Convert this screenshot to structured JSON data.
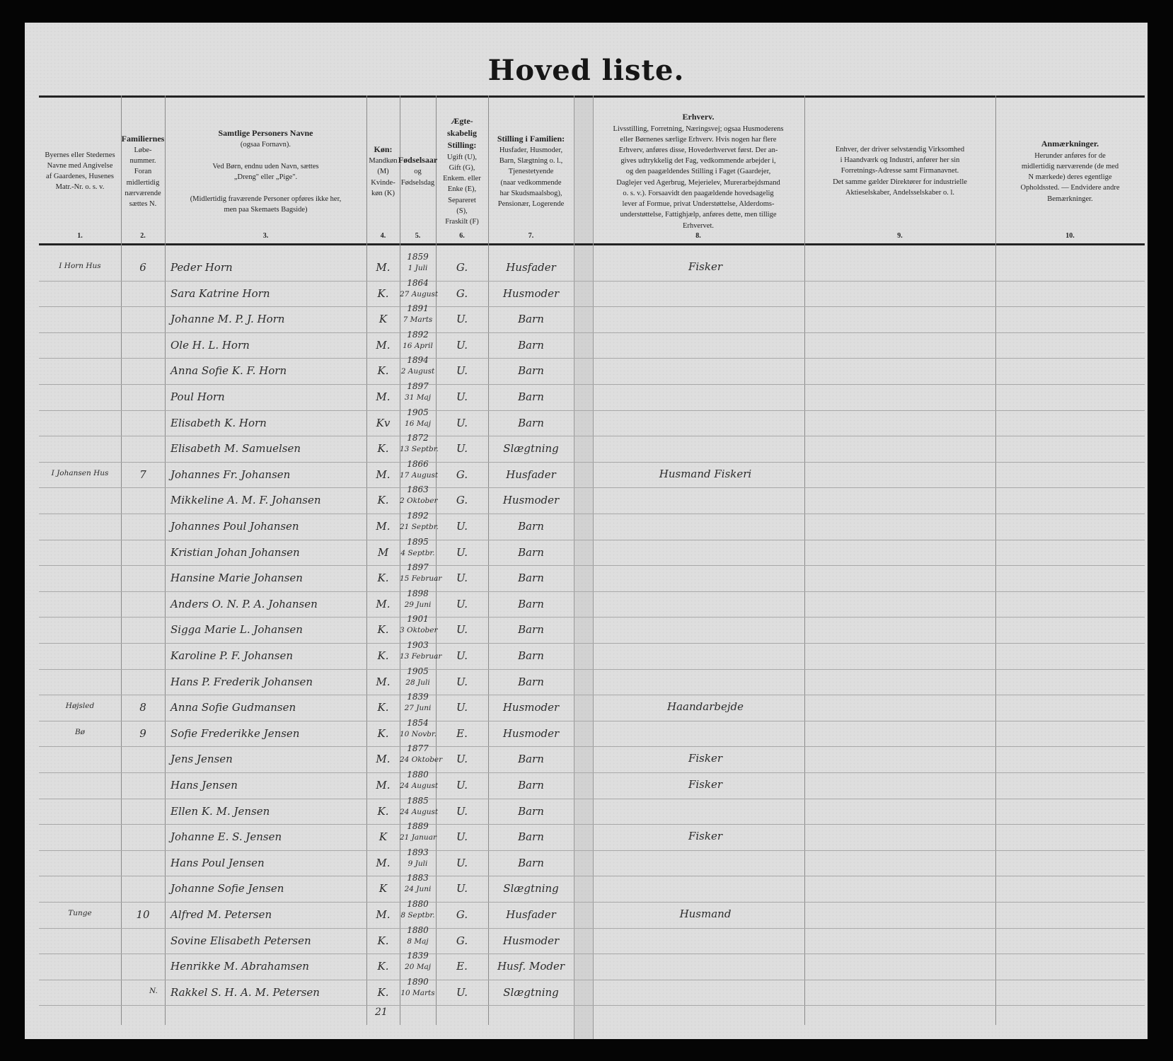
{
  "title": "Hoved liste.",
  "columns": [
    {
      "num": "1.",
      "header": "Byernes eller Stedernes\nNavne med Angivelse\naf Gaardenes, Husenes\nMatr.-Nr. o. s. v."
    },
    {
      "num": "2.",
      "header_title": "Familiernes",
      "header": "Løbe-\nnummer.\nForan\nmidlertidig\nnærværende\nsættes N."
    },
    {
      "num": "3.",
      "header_title": "Samtlige Personers Navne",
      "header": "(ogsaa Fornavn).\n\nVed Børn, endnu uden Navn, sættes\n„Dreng\" eller „Pige\".\n\n(Midlertidig fraværende Personer opføres ikke her,\nmen paa Skemaets Bagside)"
    },
    {
      "num": "4.",
      "header_title": "Køn:",
      "header": "Mandkøn\n(M)\nKvinde-\nkøn (K)"
    },
    {
      "num": "5.",
      "header_title": "Fødselsaar",
      "header": "og\nFødselsdag"
    },
    {
      "num": "6.",
      "header_title": "Ægte-\nskabelig\nStilling:",
      "header": "Ugift (U),\nGift (G),\nEnkem. eller\nEnke (E),\nSepareret\n(S),\nFraskilt (F)"
    },
    {
      "num": "7.",
      "header_title": "Stilling i Familien:",
      "header": "Husfader, Husmoder,\nBarn, Slægtning o. l.,\nTjenestetyende\n(naar vedkommende\nhar Skudsmaalsbog),\nPensionær, Logerende"
    },
    {
      "num": "8.",
      "header_title": "Erhverv.",
      "header": "Livsstilling, Forretning, Næringsvej; ogsaa Husmoderens\neller Børnenes særlige Erhverv. Hvis nogen har flere\nErhverv, anføres disse, Hovederhvervet først. Der an-\ngives udtrykkelig det Fag, vedkommende arbejder i,\nog den paagældendes Stilling i Faget (Gaardejer,\nDaglejer ved Agerbrug, Mejerielev, Murerarbejdsmand\no. s. v.). Forsaavidt den paagældende hovedsagelig\nlever af Formue, privat Understøttelse, Alderdoms-\nunderstøttelse, Fattighjælp, anføres dette, men tillige\nErhvervet."
    },
    {
      "num": "9.",
      "header": "Enhver, der driver selvstændig Virksomhed\ni Haandværk og Industri, anfører her sin\nForretnings-Adresse samt Firmanavnet.\nDet samme gælder Direktører for industrielle\nAktieselskaber, Andelsselskaber o. l."
    },
    {
      "num": "10.",
      "header_title": "Anmærkninger.",
      "header": "Herunder anføres for de\nmidlertidig nærværende (de med\nN mærkede) deres egentlige\nOpholdssted. — Endvidere andre\nBemærkninger."
    }
  ],
  "rows": [
    {
      "place": "I Horn Hus",
      "fam": "6",
      "name": "Peder Horn",
      "sex": "M.",
      "year": "1859",
      "day": "1 Juli",
      "civil": "G.",
      "family": "Husfader",
      "occupation": "Fisker"
    },
    {
      "name": "Sara Katrine Horn",
      "sex": "K.",
      "year": "1864",
      "day": "27 August",
      "civil": "G.",
      "family": "Husmoder"
    },
    {
      "name": "Johanne M. P. J. Horn",
      "sex": "K",
      "year": "1891",
      "day": "7 Marts",
      "civil": "U.",
      "family": "Barn"
    },
    {
      "name": "Ole H. L. Horn",
      "sex": "M.",
      "year": "1892",
      "day": "16 April",
      "civil": "U.",
      "family": "Barn"
    },
    {
      "name": "Anna Sofie K. F. Horn",
      "sex": "K.",
      "year": "1894",
      "day": "2 August",
      "civil": "U.",
      "family": "Barn"
    },
    {
      "name": "Poul Horn",
      "sex": "M.",
      "year": "1897",
      "day": "31 Maj",
      "civil": "U.",
      "family": "Barn"
    },
    {
      "name": "Elisabeth K. Horn",
      "sex": "Kv",
      "year": "1905",
      "day": "16 Maj",
      "civil": "U.",
      "family": "Barn"
    },
    {
      "name": "Elisabeth M. Samuelsen",
      "sex": "K.",
      "year": "1872",
      "day": "13 Septbr.",
      "civil": "U.",
      "family": "Slægtning"
    },
    {
      "place": "I Johansen Hus",
      "fam": "7",
      "name": "Johannes Fr. Johansen",
      "sex": "M.",
      "year": "1866",
      "day": "17 August",
      "civil": "G.",
      "family": "Husfader",
      "occupation": "Husmand Fiskeri"
    },
    {
      "name": "Mikkeline A. M. F. Johansen",
      "sex": "K.",
      "year": "1863",
      "day": "2 Oktober",
      "civil": "G.",
      "family": "Husmoder"
    },
    {
      "name": "Johannes Poul Johansen",
      "sex": "M.",
      "year": "1892",
      "day": "21 Septbr.",
      "civil": "U.",
      "family": "Barn"
    },
    {
      "name": "Kristian Johan Johansen",
      "sex": "M",
      "year": "1895",
      "day": "4 Septbr.",
      "civil": "U.",
      "family": "Barn"
    },
    {
      "name": "Hansine Marie Johansen",
      "sex": "K.",
      "year": "1897",
      "day": "15 Februar",
      "civil": "U.",
      "family": "Barn"
    },
    {
      "name": "Anders O. N. P. A. Johansen",
      "sex": "M.",
      "year": "1898",
      "day": "29 Juni",
      "civil": "U.",
      "family": "Barn"
    },
    {
      "name": "Sigga Marie L. Johansen",
      "sex": "K.",
      "year": "1901",
      "day": "3 Oktober",
      "civil": "U.",
      "family": "Barn"
    },
    {
      "name": "Karoline P. F. Johansen",
      "sex": "K.",
      "year": "1903",
      "day": "13 Februar",
      "civil": "U.",
      "family": "Barn"
    },
    {
      "name": "Hans P. Frederik Johansen",
      "sex": "M.",
      "year": "1905",
      "day": "28 Juli",
      "civil": "U.",
      "family": "Barn"
    },
    {
      "place": "Højsled",
      "fam": "8",
      "name": "Anna Sofie Gudmansen",
      "sex": "K.",
      "year": "1839",
      "day": "27 Juni",
      "civil": "U.",
      "family": "Husmoder",
      "occupation": "Haandarbejde"
    },
    {
      "place": "Bø",
      "fam": "9",
      "name": "Sofie Frederikke Jensen",
      "sex": "K.",
      "year": "1854",
      "day": "10 Novbr.",
      "civil": "E.",
      "family": "Husmoder"
    },
    {
      "name": "Jens Jensen",
      "sex": "M.",
      "year": "1877",
      "day": "24 Oktober",
      "civil": "U.",
      "family": "Barn",
      "occupation": "Fisker"
    },
    {
      "name": "Hans Jensen",
      "sex": "M.",
      "year": "1880",
      "day": "24 August",
      "civil": "U.",
      "family": "Barn",
      "occupation": "Fisker"
    },
    {
      "name": "Ellen K. M. Jensen",
      "sex": "K.",
      "year": "1885",
      "day": "24 August",
      "civil": "U.",
      "family": "Barn"
    },
    {
      "name": "Johanne E. S. Jensen",
      "sex": "K",
      "year": "1889",
      "day": "21 Januar",
      "civil": "U.",
      "family": "Barn",
      "occupation": "Fisker"
    },
    {
      "name": "Hans Poul Jensen",
      "sex": "M.",
      "year": "1893",
      "day": "9 Juli",
      "civil": "U.",
      "family": "Barn"
    },
    {
      "name": "Johanne Sofie Jensen",
      "sex": "K",
      "year": "1883",
      "day": "24 Juni",
      "civil": "U.",
      "family": "Slægtning"
    },
    {
      "place": "Tunge",
      "fam": "10",
      "name": "Alfred M. Petersen",
      "sex": "M.",
      "year": "1880",
      "day": "8 Septbr.",
      "civil": "G.",
      "family": "Husfader",
      "occupation": "Husmand"
    },
    {
      "name": "Sovine Elisabeth Petersen",
      "sex": "K.",
      "year": "1880",
      "day": "8 Maj",
      "civil": "G.",
      "family": "Husmoder"
    },
    {
      "name": "Henrikke M. Abrahamsen",
      "sex": "K.",
      "year": "1839",
      "day": "20 Maj",
      "civil": "E.",
      "family": "Husf. Moder"
    },
    {
      "prefix": "N.",
      "name": "Rakkel S. H. A. M. Petersen",
      "sex": "K.",
      "year": "1890",
      "day": "10 Marts",
      "civil": "U.",
      "family": "Slægtning"
    }
  ],
  "total": "21"
}
